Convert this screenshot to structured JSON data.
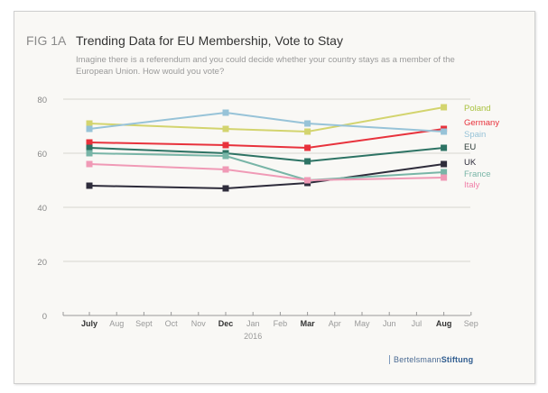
{
  "figure_label": "FIG 1A",
  "chart_data": {
    "type": "line",
    "title": "Trending Data for EU Membership, Vote to Stay",
    "subtitle": "Imagine there is a referendum and you could decide whether your country stays as a member of the European Union. How would you vote?",
    "x_ticks": [
      "July",
      "Aug",
      "Sept",
      "Oct",
      "Nov",
      "Dec",
      "Jan",
      "Feb",
      "Mar",
      "Apr",
      "May",
      "Jun",
      "Jul",
      "Aug",
      "Sep"
    ],
    "x_ticks_bold": [
      "July",
      "Dec",
      "Mar",
      "Aug"
    ],
    "x_year_label": "2016",
    "x": [
      "July",
      "Dec",
      "Mar",
      "Aug"
    ],
    "y_ticks": [
      0,
      20,
      40,
      60,
      80
    ],
    "ylim": [
      0,
      80
    ],
    "grid": "horizontal",
    "legend": "right, labels at line ends",
    "series": [
      {
        "name": "Poland",
        "values": [
          71,
          69,
          68,
          77
        ],
        "color": "#d3d46e",
        "label_color": "#a9c23f"
      },
      {
        "name": "Germany",
        "values": [
          64,
          63,
          62,
          69
        ],
        "color": "#e8323c",
        "label_color": "#e8323c"
      },
      {
        "name": "Spain",
        "values": [
          69,
          75,
          71,
          68
        ],
        "color": "#97c3d8",
        "label_color": "#97c3d8"
      },
      {
        "name": "EU",
        "values": [
          62,
          60,
          57,
          62
        ],
        "color": "#2d7364",
        "label_color": "#2d3b38"
      },
      {
        "name": "UK",
        "values": [
          48,
          47,
          49,
          56
        ],
        "color": "#2e2c3b",
        "label_color": "#2e2c3b"
      },
      {
        "name": "France",
        "values": [
          60,
          59,
          50,
          53
        ],
        "color": "#78b5a7",
        "label_color": "#78b5a7"
      },
      {
        "name": "Italy",
        "values": [
          56,
          54,
          50,
          51
        ],
        "color": "#f09ab6",
        "label_color": "#f07fa8"
      }
    ]
  },
  "logo": {
    "part1": "Bertelsmann",
    "part2": "Stiftung"
  }
}
